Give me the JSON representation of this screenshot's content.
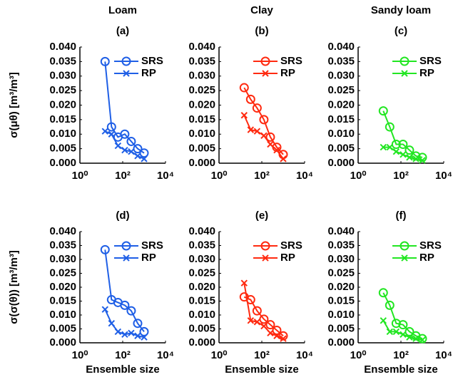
{
  "chart_data": [
    {
      "type": "line",
      "title": "Loam",
      "subtitle": "(a)",
      "ylabel": "σ(μθ) [m³/m³]",
      "xscale": "log",
      "xlim": [
        1,
        10000
      ],
      "ylim": [
        0,
        0.04
      ],
      "xticks": [
        {
          "value": 1,
          "label": "10⁰"
        },
        {
          "value": 100,
          "label": "10²"
        },
        {
          "value": 10000,
          "label": "10⁴"
        }
      ],
      "yticks": [
        {
          "value": 0,
          "label": "0.000"
        },
        {
          "value": 0.005,
          "label": "0.005"
        },
        {
          "value": 0.01,
          "label": "0.010"
        },
        {
          "value": 0.015,
          "label": "0.015"
        },
        {
          "value": 0.02,
          "label": "0.020"
        },
        {
          "value": 0.025,
          "label": "0.025"
        },
        {
          "value": 0.03,
          "label": "0.030"
        },
        {
          "value": 0.035,
          "label": "0.035"
        },
        {
          "value": 0.04,
          "label": "0.040"
        }
      ],
      "legend": "upper right",
      "x": [
        15,
        30,
        60,
        125,
        250,
        500,
        1000
      ],
      "series": [
        {
          "name": "SRS",
          "color": "#1f5fe6",
          "marker": "o",
          "values": [
            0.035,
            0.0125,
            0.009,
            0.01,
            0.0075,
            0.005,
            0.0035
          ]
        },
        {
          "name": "RP",
          "color": "#1f5fe6",
          "marker": "x",
          "values": [
            0.011,
            0.01,
            0.006,
            0.0045,
            0.004,
            0.0025,
            0.0015
          ]
        }
      ]
    },
    {
      "type": "line",
      "title": "Clay",
      "subtitle": "(b)",
      "xscale": "log",
      "xlim": [
        1,
        10000
      ],
      "ylim": [
        0,
        0.04
      ],
      "xticks": [
        {
          "value": 1,
          "label": "10⁰"
        },
        {
          "value": 100,
          "label": "10²"
        },
        {
          "value": 10000,
          "label": "10⁴"
        }
      ],
      "yticks": [
        {
          "value": 0,
          "label": "0.000"
        },
        {
          "value": 0.005,
          "label": "0.005"
        },
        {
          "value": 0.01,
          "label": "0.010"
        },
        {
          "value": 0.015,
          "label": "0.015"
        },
        {
          "value": 0.02,
          "label": "0.020"
        },
        {
          "value": 0.025,
          "label": "0.025"
        },
        {
          "value": 0.03,
          "label": "0.030"
        },
        {
          "value": 0.035,
          "label": "0.035"
        },
        {
          "value": 0.04,
          "label": "0.040"
        }
      ],
      "legend": "upper right",
      "x": [
        15,
        30,
        60,
        125,
        250,
        500,
        1000
      ],
      "series": [
        {
          "name": "SRS",
          "color": "#ff2a10",
          "marker": "o",
          "values": [
            0.026,
            0.022,
            0.019,
            0.015,
            0.009,
            0.0055,
            0.003
          ]
        },
        {
          "name": "RP",
          "color": "#ff2a10",
          "marker": "x",
          "values": [
            0.0165,
            0.0115,
            0.011,
            0.0095,
            0.0065,
            0.0045,
            0.0015
          ]
        }
      ]
    },
    {
      "type": "line",
      "title": "Sandy loam",
      "subtitle": "(c)",
      "xscale": "log",
      "xlim": [
        1,
        10000
      ],
      "ylim": [
        0,
        0.04
      ],
      "xticks": [
        {
          "value": 1,
          "label": "10⁰"
        },
        {
          "value": 100,
          "label": "10²"
        },
        {
          "value": 10000,
          "label": "10⁴"
        }
      ],
      "yticks": [
        {
          "value": 0,
          "label": "0.000"
        },
        {
          "value": 0.005,
          "label": "0.005"
        },
        {
          "value": 0.01,
          "label": "0.010"
        },
        {
          "value": 0.015,
          "label": "0.015"
        },
        {
          "value": 0.02,
          "label": "0.020"
        },
        {
          "value": 0.025,
          "label": "0.025"
        },
        {
          "value": 0.03,
          "label": "0.030"
        },
        {
          "value": 0.035,
          "label": "0.035"
        },
        {
          "value": 0.04,
          "label": "0.040"
        }
      ],
      "legend": "upper right",
      "x": [
        15,
        30,
        60,
        125,
        250,
        500,
        1000
      ],
      "series": [
        {
          "name": "SRS",
          "color": "#22e622",
          "marker": "o",
          "values": [
            0.018,
            0.0125,
            0.0065,
            0.0065,
            0.0045,
            0.0025,
            0.002
          ]
        },
        {
          "name": "RP",
          "color": "#22e622",
          "marker": "x",
          "values": [
            0.0055,
            0.0055,
            0.004,
            0.003,
            0.002,
            0.0015,
            0.001
          ]
        }
      ]
    },
    {
      "type": "line",
      "subtitle": "(d)",
      "ylabel": "σ(σ(θ)) [m³/m³]",
      "xlabel": "Ensemble size",
      "xscale": "log",
      "xlim": [
        1,
        10000
      ],
      "ylim": [
        0,
        0.04
      ],
      "xticks": [
        {
          "value": 1,
          "label": "10⁰"
        },
        {
          "value": 100,
          "label": "10²"
        },
        {
          "value": 10000,
          "label": "10⁴"
        }
      ],
      "yticks": [
        {
          "value": 0,
          "label": "0.000"
        },
        {
          "value": 0.005,
          "label": "0.005"
        },
        {
          "value": 0.01,
          "label": "0.010"
        },
        {
          "value": 0.015,
          "label": "0.015"
        },
        {
          "value": 0.02,
          "label": "0.020"
        },
        {
          "value": 0.025,
          "label": "0.025"
        },
        {
          "value": 0.03,
          "label": "0.030"
        },
        {
          "value": 0.035,
          "label": "0.035"
        },
        {
          "value": 0.04,
          "label": "0.040"
        }
      ],
      "legend": "upper right",
      "x": [
        15,
        30,
        60,
        125,
        250,
        500,
        1000
      ],
      "series": [
        {
          "name": "SRS",
          "color": "#1f5fe6",
          "marker": "o",
          "values": [
            0.0335,
            0.0155,
            0.0145,
            0.0135,
            0.0115,
            0.007,
            0.004
          ]
        },
        {
          "name": "RP",
          "color": "#1f5fe6",
          "marker": "x",
          "values": [
            0.012,
            0.007,
            0.004,
            0.003,
            0.0035,
            0.0025,
            0.002
          ]
        }
      ]
    },
    {
      "type": "line",
      "subtitle": "(e)",
      "xlabel": "Ensemble size",
      "xscale": "log",
      "xlim": [
        1,
        10000
      ],
      "ylim": [
        0,
        0.04
      ],
      "xticks": [
        {
          "value": 1,
          "label": "10⁰"
        },
        {
          "value": 100,
          "label": "10²"
        },
        {
          "value": 10000,
          "label": "10⁴"
        }
      ],
      "yticks": [
        {
          "value": 0,
          "label": "0.000"
        },
        {
          "value": 0.005,
          "label": "0.005"
        },
        {
          "value": 0.01,
          "label": "0.010"
        },
        {
          "value": 0.015,
          "label": "0.015"
        },
        {
          "value": 0.02,
          "label": "0.020"
        },
        {
          "value": 0.025,
          "label": "0.025"
        },
        {
          "value": 0.03,
          "label": "0.030"
        },
        {
          "value": 0.035,
          "label": "0.035"
        },
        {
          "value": 0.04,
          "label": "0.040"
        }
      ],
      "legend": "upper right",
      "x": [
        15,
        30,
        60,
        125,
        250,
        500,
        1000
      ],
      "series": [
        {
          "name": "SRS",
          "color": "#ff2a10",
          "marker": "o",
          "values": [
            0.0165,
            0.0155,
            0.0115,
            0.0085,
            0.0065,
            0.0045,
            0.0025
          ]
        },
        {
          "name": "RP",
          "color": "#ff2a10",
          "marker": "x",
          "values": [
            0.0215,
            0.008,
            0.0075,
            0.006,
            0.0035,
            0.0025,
            0.0015
          ]
        }
      ]
    },
    {
      "type": "line",
      "subtitle": "(f)",
      "xlabel": "Ensemble size",
      "xscale": "log",
      "xlim": [
        1,
        10000
      ],
      "ylim": [
        0,
        0.04
      ],
      "xticks": [
        {
          "value": 1,
          "label": "10⁰"
        },
        {
          "value": 100,
          "label": "10²"
        },
        {
          "value": 10000,
          "label": "10⁴"
        }
      ],
      "yticks": [
        {
          "value": 0,
          "label": "0.000"
        },
        {
          "value": 0.005,
          "label": "0.005"
        },
        {
          "value": 0.01,
          "label": "0.010"
        },
        {
          "value": 0.015,
          "label": "0.015"
        },
        {
          "value": 0.02,
          "label": "0.020"
        },
        {
          "value": 0.025,
          "label": "0.025"
        },
        {
          "value": 0.03,
          "label": "0.030"
        },
        {
          "value": 0.035,
          "label": "0.035"
        },
        {
          "value": 0.04,
          "label": "0.040"
        }
      ],
      "legend": "upper right",
      "x": [
        15,
        30,
        60,
        125,
        250,
        500,
        1000
      ],
      "series": [
        {
          "name": "SRS",
          "color": "#22e622",
          "marker": "o",
          "values": [
            0.018,
            0.0135,
            0.007,
            0.0065,
            0.004,
            0.0025,
            0.0015
          ]
        },
        {
          "name": "RP",
          "color": "#22e622",
          "marker": "x",
          "values": [
            0.008,
            0.004,
            0.004,
            0.003,
            0.002,
            0.0015,
            0.001
          ]
        }
      ]
    }
  ]
}
